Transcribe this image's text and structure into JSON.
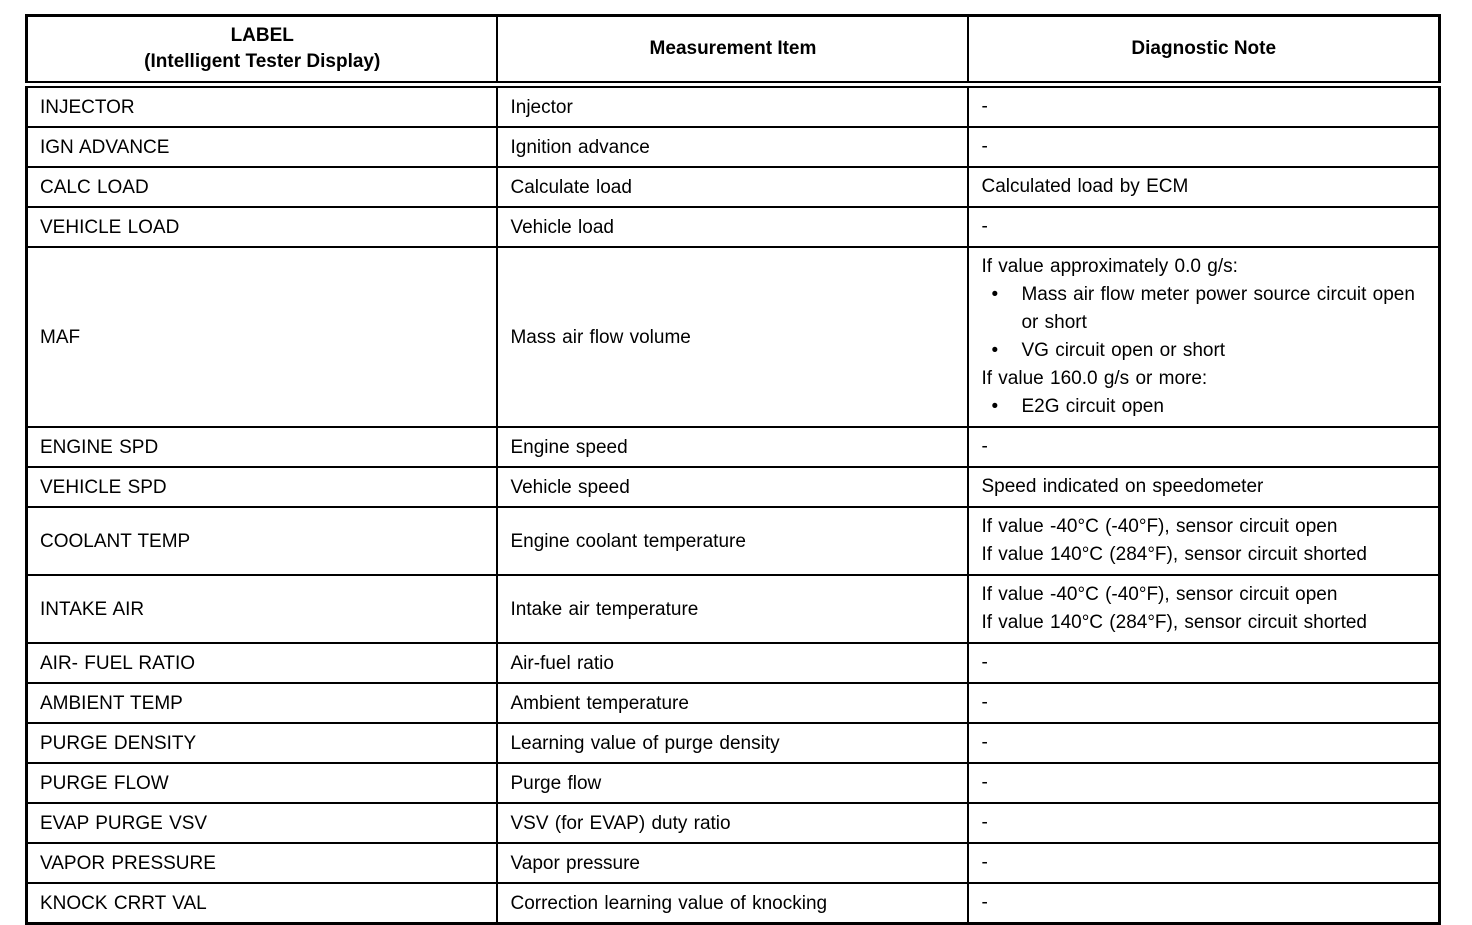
{
  "table": {
    "bullet_char": "•",
    "border_color": "#000000",
    "header": {
      "label_line1": "LABEL",
      "label_line2": "(Intelligent Tester Display)",
      "measurement": "Measurement Item",
      "note": "Diagnostic Note"
    },
    "rows": [
      {
        "label": "INJECTOR",
        "item": "Injector",
        "note": [
          {
            "text": "-"
          }
        ]
      },
      {
        "label": "IGN ADVANCE",
        "item": "Ignition advance",
        "note": [
          {
            "text": "-"
          }
        ]
      },
      {
        "label": "CALC LOAD",
        "item": "Calculate load",
        "note": [
          {
            "text": "Calculated load by ECM"
          }
        ]
      },
      {
        "label": "VEHICLE LOAD",
        "item": "Vehicle load",
        "note": [
          {
            "text": "-"
          }
        ]
      },
      {
        "label": "MAF",
        "item": "Mass air flow volume",
        "note": [
          {
            "text": "If value approximately 0.0 g/s:"
          },
          {
            "text": "Mass air flow meter power source circuit open or short",
            "bullet": true
          },
          {
            "text": "VG circuit open or short",
            "bullet": true
          },
          {
            "text": "If value 160.0 g/s or more:"
          },
          {
            "text": "E2G circuit open",
            "bullet": true
          }
        ]
      },
      {
        "label": "ENGINE SPD",
        "item": "Engine speed",
        "note": [
          {
            "text": "-"
          }
        ]
      },
      {
        "label": "VEHICLE SPD",
        "item": "Vehicle speed",
        "note": [
          {
            "text": "Speed indicated on speedometer"
          }
        ]
      },
      {
        "label": "COOLANT TEMP",
        "item": "Engine coolant temperature",
        "note": [
          {
            "text": "If value -40°C (-40°F), sensor circuit open"
          },
          {
            "text": "If value 140°C (284°F), sensor circuit shorted"
          }
        ]
      },
      {
        "label": "INTAKE AIR",
        "item": "Intake air temperature",
        "note": [
          {
            "text": "If value -40°C (-40°F), sensor circuit open"
          },
          {
            "text": "If value 140°C (284°F), sensor circuit shorted"
          }
        ]
      },
      {
        "label": "AIR- FUEL RATIO",
        "item": "Air-fuel ratio",
        "note": [
          {
            "text": "-"
          }
        ]
      },
      {
        "label": "AMBIENT TEMP",
        "item": "Ambient temperature",
        "note": [
          {
            "text": "-"
          }
        ]
      },
      {
        "label": "PURGE DENSITY",
        "item": "Learning value of purge density",
        "note": [
          {
            "text": "-"
          }
        ]
      },
      {
        "label": "PURGE FLOW",
        "item": "Purge flow",
        "note": [
          {
            "text": "-"
          }
        ]
      },
      {
        "label": "EVAP PURGE VSV",
        "item": "VSV (for EVAP) duty ratio",
        "note": [
          {
            "text": "-"
          }
        ]
      },
      {
        "label": "VAPOR PRESSURE",
        "item": "Vapor pressure",
        "note": [
          {
            "text": "-"
          }
        ]
      },
      {
        "label": "KNOCK CRRT VAL",
        "item": "Correction learning value of knocking",
        "note": [
          {
            "text": "-"
          }
        ]
      }
    ]
  }
}
